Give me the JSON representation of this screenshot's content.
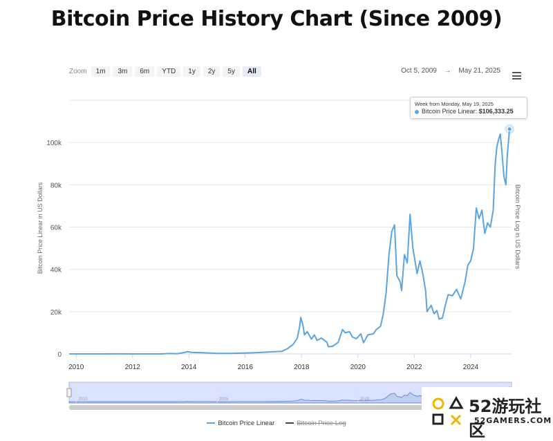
{
  "page": {
    "title": "Bitcoin Price History Chart (Since 2009)"
  },
  "toolbar": {
    "zoom_label": "Zoom",
    "buttons": [
      "1m",
      "3m",
      "6m",
      "YTD",
      "1y",
      "2y",
      "5y",
      "All"
    ],
    "active_button": "All",
    "date_from": "Oct 5, 2009",
    "date_to": "May 21, 2025",
    "menu_icon": "hamburger-menu-icon"
  },
  "tooltip": {
    "header": "Week from Monday, May 19, 2025",
    "series_label": "Bitcoin Price Linear:",
    "value": "$106,333.25"
  },
  "legend": {
    "items": [
      {
        "label": "Bitcoin Price Linear",
        "color": "#5aa5e0",
        "visible": true
      },
      {
        "label": "Bitcoin Price Log",
        "color": "#444444",
        "visible": false
      }
    ]
  },
  "watermark": {
    "brand": "52游玩社区",
    "site": "52GAMERS.COM"
  },
  "chart_data": {
    "type": "line",
    "title": "Bitcoin Price History Chart (Since 2009)",
    "ylabel": "Bitcoin Price Linear in US Dollars",
    "ylabel_right": "Bitcoin Price Log in US Dollars",
    "ylim": [
      0,
      120000
    ],
    "xlim": [
      2009.75,
      2025.45
    ],
    "grid": true,
    "legend_position": "bottom",
    "color": "#5aa5e0",
    "yticks": [
      {
        "value": 0,
        "label": "0"
      },
      {
        "value": 20000,
        "label": "20k"
      },
      {
        "value": 40000,
        "label": "40k"
      },
      {
        "value": 60000,
        "label": "60k"
      },
      {
        "value": 80000,
        "label": "80k"
      },
      {
        "value": 100000,
        "label": "100k"
      }
    ],
    "xticks": [
      "2010",
      "2012",
      "2014",
      "2016",
      "2018",
      "2020",
      "2022",
      "2024"
    ],
    "navigator_labels": [
      "2010",
      "2015",
      "2020"
    ],
    "series": [
      {
        "name": "Bitcoin Price Linear",
        "points": [
          [
            2009.76,
            0
          ],
          [
            2011.0,
            0
          ],
          [
            2011.45,
            25
          ],
          [
            2012.0,
            5
          ],
          [
            2013.0,
            15
          ],
          [
            2013.3,
            200
          ],
          [
            2013.6,
            100
          ],
          [
            2013.85,
            700
          ],
          [
            2013.95,
            1100
          ],
          [
            2014.1,
            700
          ],
          [
            2014.5,
            600
          ],
          [
            2015.0,
            250
          ],
          [
            2015.5,
            250
          ],
          [
            2016.0,
            400
          ],
          [
            2016.5,
            650
          ],
          [
            2017.0,
            1000
          ],
          [
            2017.3,
            1200
          ],
          [
            2017.5,
            2500
          ],
          [
            2017.7,
            4500
          ],
          [
            2017.85,
            7500
          ],
          [
            2017.93,
            13000
          ],
          [
            2017.97,
            17300
          ],
          [
            2018.05,
            13500
          ],
          [
            2018.1,
            9000
          ],
          [
            2018.2,
            10500
          ],
          [
            2018.35,
            7000
          ],
          [
            2018.45,
            9000
          ],
          [
            2018.55,
            6400
          ],
          [
            2018.7,
            7500
          ],
          [
            2018.8,
            6500
          ],
          [
            2018.9,
            5500
          ],
          [
            2018.95,
            3400
          ],
          [
            2019.1,
            3600
          ],
          [
            2019.3,
            5500
          ],
          [
            2019.45,
            11500
          ],
          [
            2019.55,
            10000
          ],
          [
            2019.7,
            10500
          ],
          [
            2019.8,
            8000
          ],
          [
            2019.95,
            7200
          ],
          [
            2020.1,
            9500
          ],
          [
            2020.2,
            5300
          ],
          [
            2020.35,
            9000
          ],
          [
            2020.55,
            9500
          ],
          [
            2020.65,
            11500
          ],
          [
            2020.8,
            13000
          ],
          [
            2020.9,
            19000
          ],
          [
            2021.0,
            29000
          ],
          [
            2021.1,
            47000
          ],
          [
            2021.2,
            58000
          ],
          [
            2021.3,
            61000
          ],
          [
            2021.38,
            37000
          ],
          [
            2021.5,
            34000
          ],
          [
            2021.55,
            30000
          ],
          [
            2021.65,
            47000
          ],
          [
            2021.75,
            43000
          ],
          [
            2021.85,
            66000
          ],
          [
            2021.95,
            50000
          ],
          [
            2022.1,
            38000
          ],
          [
            2022.2,
            44000
          ],
          [
            2022.3,
            38000
          ],
          [
            2022.4,
            30000
          ],
          [
            2022.45,
            20000
          ],
          [
            2022.6,
            23000
          ],
          [
            2022.7,
            19000
          ],
          [
            2022.8,
            20500
          ],
          [
            2022.88,
            16500
          ],
          [
            2023.0,
            17000
          ],
          [
            2023.1,
            23000
          ],
          [
            2023.2,
            28000
          ],
          [
            2023.35,
            27500
          ],
          [
            2023.5,
            30500
          ],
          [
            2023.65,
            26000
          ],
          [
            2023.8,
            34000
          ],
          [
            2023.9,
            42000
          ],
          [
            2024.0,
            44000
          ],
          [
            2024.1,
            50000
          ],
          [
            2024.2,
            69000
          ],
          [
            2024.3,
            64000
          ],
          [
            2024.4,
            68000
          ],
          [
            2024.5,
            57000
          ],
          [
            2024.6,
            62000
          ],
          [
            2024.7,
            60000
          ],
          [
            2024.8,
            68000
          ],
          [
            2024.87,
            90000
          ],
          [
            2024.93,
            98000
          ],
          [
            2025.0,
            102000
          ],
          [
            2025.05,
            104000
          ],
          [
            2025.1,
            97000
          ],
          [
            2025.18,
            84000
          ],
          [
            2025.25,
            80000
          ],
          [
            2025.3,
            94000
          ],
          [
            2025.38,
            106333
          ]
        ]
      }
    ]
  }
}
